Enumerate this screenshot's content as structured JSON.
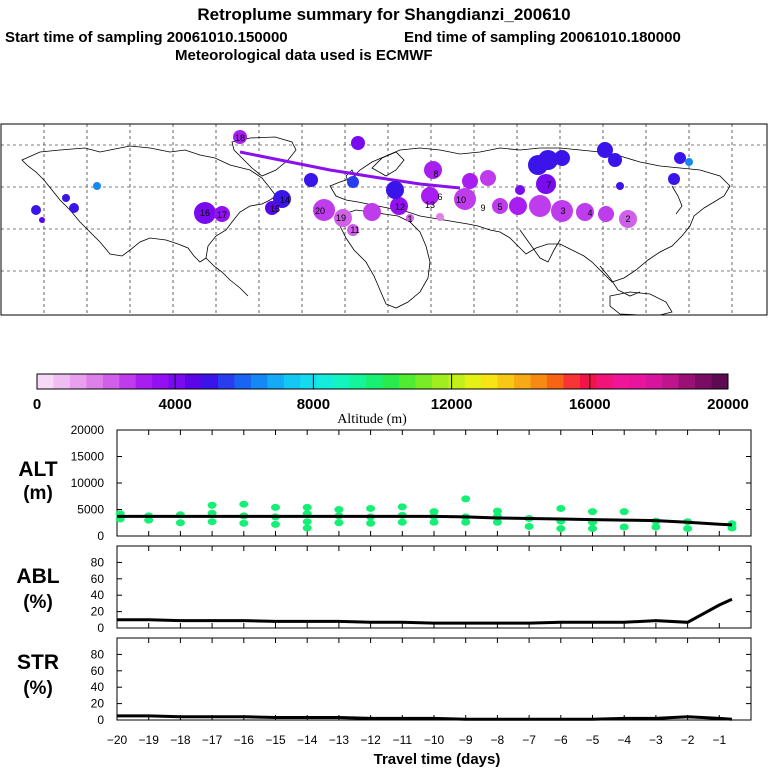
{
  "header": {
    "title": "Retroplume summary for Shangdianzi_200610",
    "start_label": "Start time of sampling 20061010.150000",
    "end_label": "End time of sampling 20061010.180000",
    "met_label": "Meteorological data used is ECMWF"
  },
  "colorbar": {
    "ticks": [
      "0",
      "4000",
      "8000",
      "12000",
      "16000",
      "20000"
    ],
    "tick_values": [
      0,
      4000,
      8000,
      12000,
      16000,
      20000
    ],
    "label": "Altitude (m)",
    "min": 0,
    "max": 20000,
    "colors": [
      "#f6d9f6",
      "#efbdf2",
      "#e8a0ee",
      "#de80ea",
      "#d060ea",
      "#bf3cec",
      "#a81ef0",
      "#9310f2",
      "#7a0af0",
      "#5a06e8",
      "#3a14e8",
      "#2a3cf0",
      "#1a64f4",
      "#1489f6",
      "#14aaf6",
      "#14c8f4",
      "#14dcf0",
      "#14ecdc",
      "#14f4be",
      "#14f49a",
      "#18f072",
      "#28ec4e",
      "#50ec32",
      "#78ec26",
      "#a0ee1e",
      "#c4f01a",
      "#e4f016",
      "#f6e414",
      "#f8c814",
      "#f8aa14",
      "#f88a14",
      "#f86414",
      "#f83434",
      "#f01448",
      "#f01478",
      "#f0149a",
      "#e8149e",
      "#d8149e",
      "#c0148c",
      "#9a1074",
      "#7a0c64",
      "#5e0a52"
    ]
  },
  "map": {
    "plume_labels": [
      "18",
      "17",
      "16",
      "15",
      "14",
      "13",
      "12",
      "11",
      "10",
      "9",
      "8",
      "7",
      "6",
      "5",
      "4",
      "3",
      "2",
      "1",
      "20",
      "19"
    ]
  },
  "chart_data": [
    {
      "name": "ALT",
      "type": "line",
      "title": "ALT",
      "ylabel": "(m)",
      "xlabel": "Travel time (days)",
      "ylim": [
        0,
        20000
      ],
      "yticks": [
        0,
        5000,
        10000,
        15000,
        20000
      ],
      "ytick_labels": [
        "0",
        "5000",
        "10000",
        "15000",
        "20000"
      ],
      "x": [
        -20,
        -19,
        -18,
        -17,
        -16,
        -15,
        -14,
        -13,
        -12,
        -11,
        -10,
        -9,
        -8,
        -7,
        -6,
        -5,
        -4,
        -3,
        -2,
        -1,
        -0.6
      ],
      "series": [
        {
          "name": "mean altitude",
          "values": [
            3700,
            3700,
            3700,
            3700,
            3700,
            3700,
            3700,
            3700,
            3700,
            3700,
            3700,
            3600,
            3400,
            3300,
            3200,
            3100,
            3000,
            2900,
            2600,
            2200,
            2100
          ]
        }
      ],
      "scatter": {
        "name": "particle altitudes",
        "x": [
          -19.9,
          -19.9,
          -19,
          -19,
          -18,
          -18,
          -17,
          -17,
          -17,
          -16,
          -16,
          -16,
          -15,
          -15,
          -15,
          -14,
          -14,
          -14,
          -14,
          -13,
          -13,
          -13,
          -12,
          -12,
          -12,
          -11,
          -11,
          -11,
          -10,
          -10,
          -10,
          -9,
          -9,
          -9,
          -8,
          -8,
          -8,
          -7,
          -7,
          -6,
          -6,
          -6,
          -5,
          -5,
          -5,
          -4,
          -4,
          -3,
          -3,
          -2,
          -2,
          -0.6,
          -0.6
        ],
        "y": [
          3200,
          4200,
          3000,
          3800,
          2500,
          4000,
          2700,
          4300,
          5800,
          2400,
          3800,
          6000,
          2200,
          3600,
          5400,
          1500,
          2700,
          4200,
          5400,
          2500,
          3800,
          5000,
          2400,
          3600,
          5200,
          2600,
          3900,
          5500,
          2600,
          3700,
          4600,
          2600,
          3600,
          7000,
          2600,
          3700,
          4700,
          1800,
          3300,
          1400,
          2800,
          5200,
          1400,
          2600,
          4600,
          1700,
          4600,
          1700,
          2800,
          1400,
          2700,
          1500,
          2300
        ],
        "color": "#14f074"
      },
      "xticks": [
        -20,
        -19,
        -18,
        -17,
        -16,
        -15,
        -14,
        -13,
        -12,
        -11,
        -10,
        -9,
        -8,
        -7,
        -6,
        -5,
        -4,
        -3,
        -2,
        -1
      ],
      "xlim": [
        -20,
        0
      ]
    },
    {
      "name": "ABL",
      "type": "line",
      "title": "ABL",
      "ylabel": "(%)",
      "ylim": [
        0,
        100
      ],
      "yticks": [
        0,
        20,
        40,
        60,
        80
      ],
      "ytick_labels": [
        "0",
        "20",
        "40",
        "60",
        "80"
      ],
      "x": [
        -20,
        -19,
        -18,
        -17,
        -16,
        -15,
        -14,
        -13,
        -12,
        -11,
        -10,
        -9,
        -8,
        -7,
        -6,
        -5,
        -4,
        -3,
        -2,
        -1,
        -0.6
      ],
      "series": [
        {
          "name": "boundary layer fraction",
          "values": [
            10,
            10,
            9,
            9,
            9,
            8,
            8,
            8,
            7,
            7,
            6,
            6,
            6,
            6,
            7,
            7,
            7,
            9,
            7,
            28,
            35
          ]
        }
      ],
      "xlim": [
        -20,
        0
      ]
    },
    {
      "name": "STR",
      "type": "line",
      "title": "STR",
      "ylabel": "(%)",
      "ylim": [
        0,
        100
      ],
      "yticks": [
        0,
        20,
        40,
        60,
        80
      ],
      "ytick_labels": [
        "0",
        "20",
        "40",
        "60",
        "80"
      ],
      "x": [
        -20,
        -19,
        -18,
        -17,
        -16,
        -15,
        -14,
        -13,
        -12,
        -11,
        -10,
        -9,
        -8,
        -7,
        -6,
        -5,
        -4,
        -3,
        -2,
        -1,
        -0.6
      ],
      "series": [
        {
          "name": "stratospheric fraction",
          "values": [
            5,
            5,
            4,
            4,
            4,
            3,
            3,
            3,
            2,
            2,
            2,
            1,
            1,
            1,
            1,
            1,
            2,
            2,
            4,
            2,
            1
          ]
        }
      ],
      "xlim": [
        -20,
        0
      ],
      "xtick_labels": [
        "−20",
        "−19",
        "−18",
        "−17",
        "−16",
        "−15",
        "−14",
        "−13",
        "−12",
        "−11",
        "−10",
        "−9",
        "−8",
        "−7",
        "−6",
        "−5",
        "−4",
        "−3",
        "−2",
        "−1"
      ],
      "xlabel": "Travel time (days)"
    }
  ]
}
